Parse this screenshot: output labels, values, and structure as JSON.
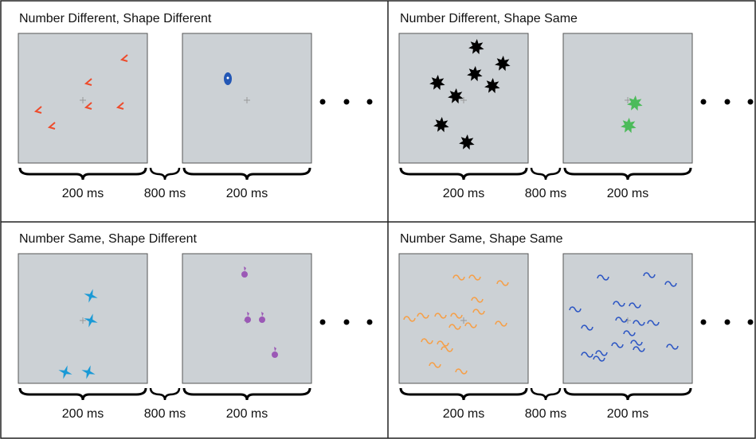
{
  "panels": [
    {
      "title": "Number Different, Shape Different",
      "labels": [
        "200 ms",
        "800 ms",
        "200 ms"
      ]
    },
    {
      "title": "Number Different, Shape Same",
      "labels": [
        "200 ms",
        "800 ms",
        "200 ms"
      ]
    },
    {
      "title": "Number Same, Shape Different",
      "labels": [
        "200 ms",
        "800 ms",
        "200 ms"
      ]
    },
    {
      "title": "Number Same, Shape Same",
      "labels": [
        "200 ms",
        "800 ms",
        "200 ms"
      ]
    }
  ]
}
